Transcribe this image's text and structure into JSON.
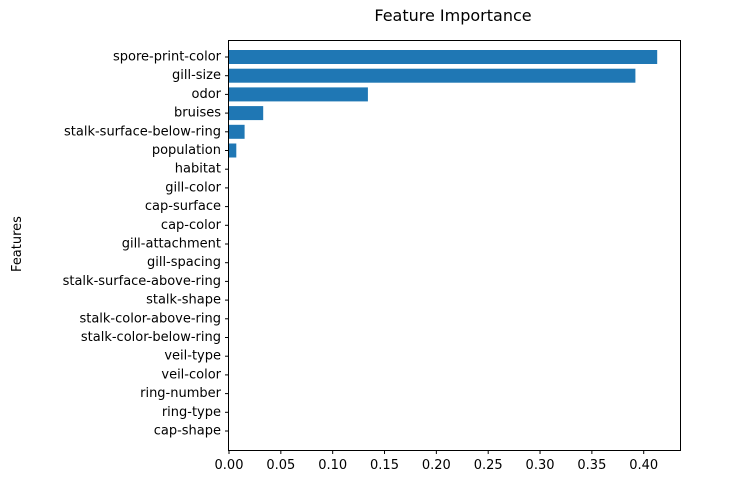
{
  "chart_data": {
    "type": "bar",
    "orientation": "horizontal",
    "title": "Feature Importance",
    "xlabel": "",
    "ylabel": "Features",
    "xlim": [
      0,
      0.435
    ],
    "xticks": [
      "0.00",
      "0.05",
      "0.10",
      "0.15",
      "0.20",
      "0.25",
      "0.30",
      "0.35",
      "0.40"
    ],
    "grid": false,
    "bar_color": "#1f77b4",
    "categories": [
      "spore-print-color",
      "gill-size",
      "odor",
      "bruises",
      "stalk-surface-below-ring",
      "population",
      "habitat",
      "gill-color",
      "cap-surface",
      "cap-color",
      "gill-attachment",
      "gill-spacing",
      "stalk-surface-above-ring",
      "stalk-shape",
      "stalk-color-above-ring",
      "stalk-color-below-ring",
      "veil-type",
      "veil-color",
      "ring-number",
      "ring-type",
      "cap-shape"
    ],
    "values": [
      0.413,
      0.392,
      0.134,
      0.033,
      0.015,
      0.007,
      0,
      0,
      0,
      0,
      0,
      0,
      0,
      0,
      0,
      0,
      0,
      0,
      0,
      0,
      0
    ]
  }
}
